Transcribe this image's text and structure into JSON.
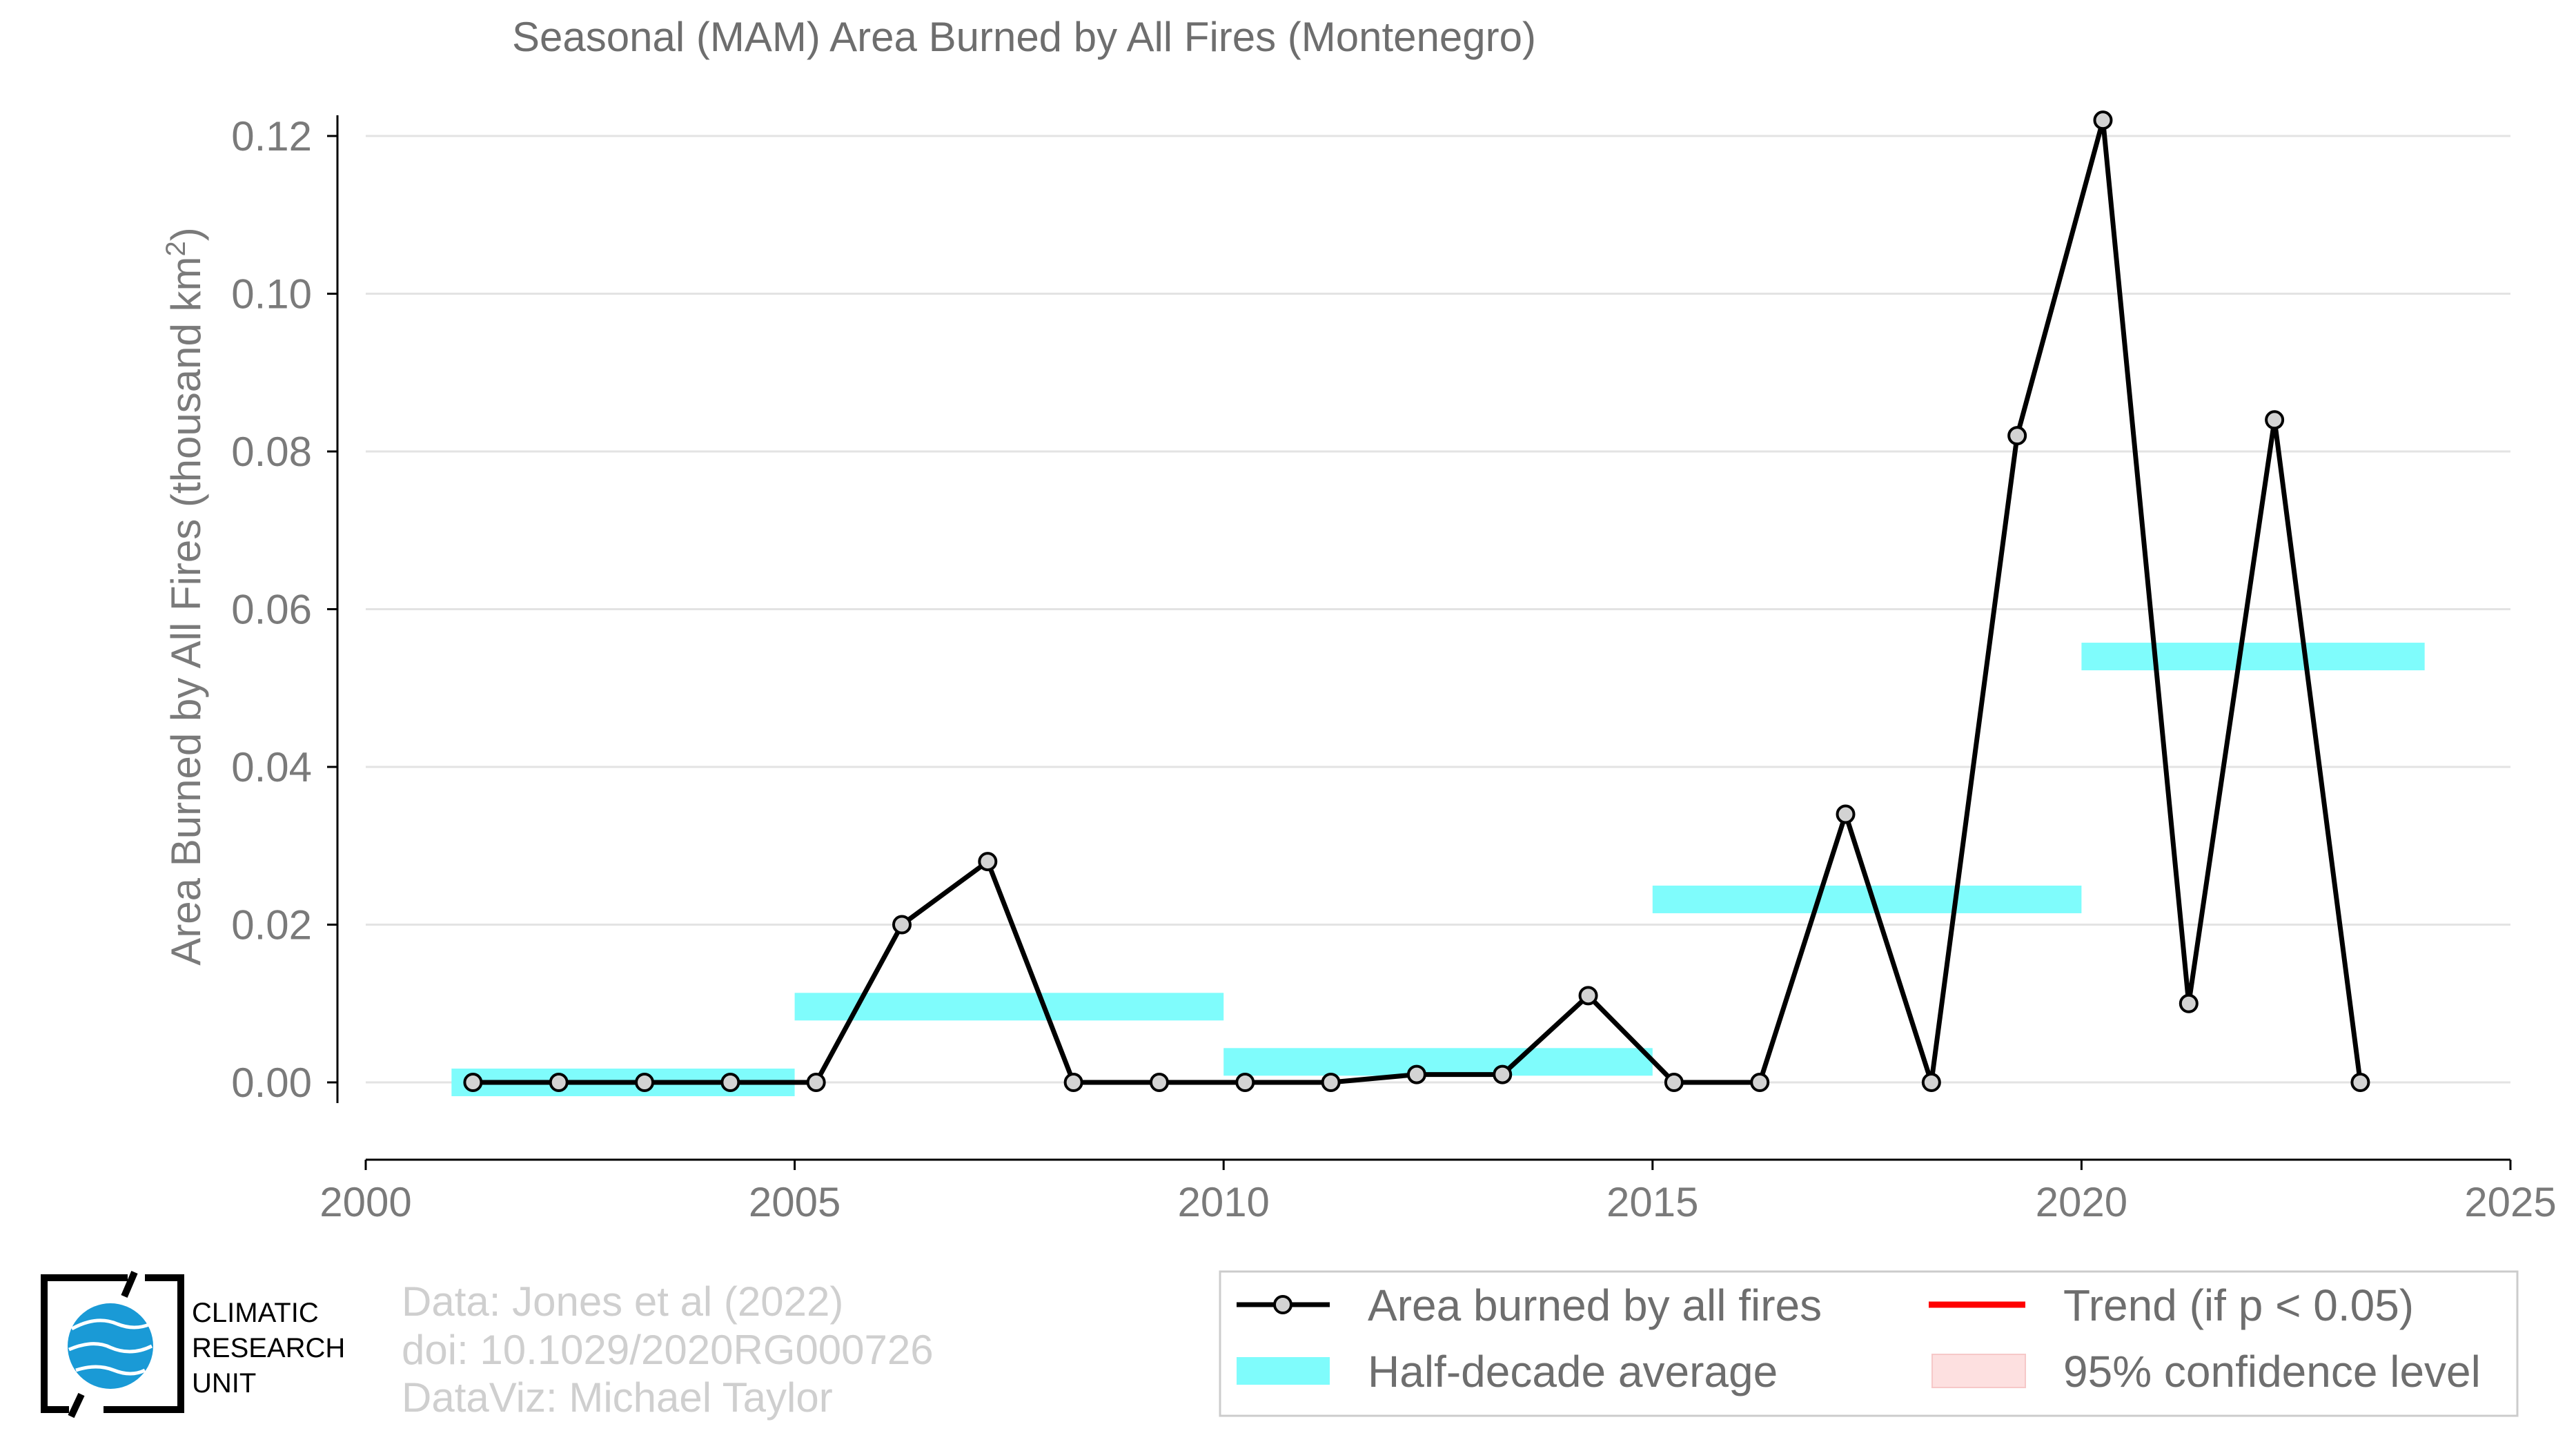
{
  "chart_data": {
    "type": "line",
    "title": "Seasonal (MAM) Area Burned by All Fires (Montenegro)",
    "ylabel": "Area Burned by All Fires (thousand km",
    "ylabel_sup": "2",
    "ylabel_suffix": ")",
    "xlim": [
      2000,
      2025
    ],
    "ylim": [
      -0.01,
      0.125
    ],
    "x_ticks": [
      2000,
      2005,
      2010,
      2015,
      2020,
      2025
    ],
    "y_ticks": [
      0.0,
      0.02,
      0.04,
      0.06,
      0.08,
      0.1,
      0.12
    ],
    "y_tick_labels": [
      "0.00",
      "0.02",
      "0.04",
      "0.06",
      "0.08",
      "0.10",
      "0.12"
    ],
    "grid": "horizontal",
    "series": [
      {
        "name": "Area burned by all fires",
        "color": "#000000",
        "marker_fill": "#d3d3d3",
        "x": [
          2001.25,
          2002.25,
          2003.25,
          2004.25,
          2005.25,
          2006.25,
          2007.25,
          2008.25,
          2009.25,
          2010.25,
          2011.25,
          2012.25,
          2013.25,
          2014.25,
          2015.25,
          2016.25,
          2017.25,
          2018.25,
          2019.25,
          2020.25,
          2021.25,
          2022.25,
          2023.25
        ],
        "values": [
          0.0,
          0.0,
          0.0,
          0.0,
          0.0,
          0.02,
          0.028,
          0.0,
          0.0,
          0.0,
          0.0,
          0.001,
          0.001,
          0.011,
          0.0,
          0.0,
          0.034,
          0.0,
          0.082,
          0.122,
          0.01,
          0.084,
          0.0
        ]
      }
    ],
    "half_decade_averages": {
      "name": "Half-decade average",
      "color": "#7ffcfc",
      "segments": [
        {
          "x0": 2001,
          "x1": 2005,
          "value": 0.0
        },
        {
          "x0": 2005,
          "x1": 2010,
          "value": 0.0096
        },
        {
          "x0": 2010,
          "x1": 2015,
          "value": 0.0026
        },
        {
          "x0": 2015,
          "x1": 2020,
          "value": 0.0232
        },
        {
          "x0": 2020,
          "x1": 2024,
          "value": 0.054
        }
      ]
    },
    "legend": {
      "placement": "bottom-right",
      "entries": [
        {
          "label": "Area burned by all fires",
          "kind": "line-marker",
          "color": "#000000"
        },
        {
          "label": "Trend (if p < 0.05)",
          "kind": "line",
          "color": "#ff0000"
        },
        {
          "label": "Half-decade average",
          "kind": "band",
          "color": "#7ffcfc"
        },
        {
          "label": "95% confidence level",
          "kind": "band",
          "color": "#fde0e0"
        }
      ]
    },
    "credits": [
      "Data: Jones et al (2022)",
      "doi: 10.1029/2020RG000726",
      "DataViz: Michael Taylor"
    ]
  },
  "logo": {
    "lines": [
      "CLIMATIC",
      "RESEARCH",
      "UNIT"
    ],
    "globe_color": "#1a9ad6"
  }
}
